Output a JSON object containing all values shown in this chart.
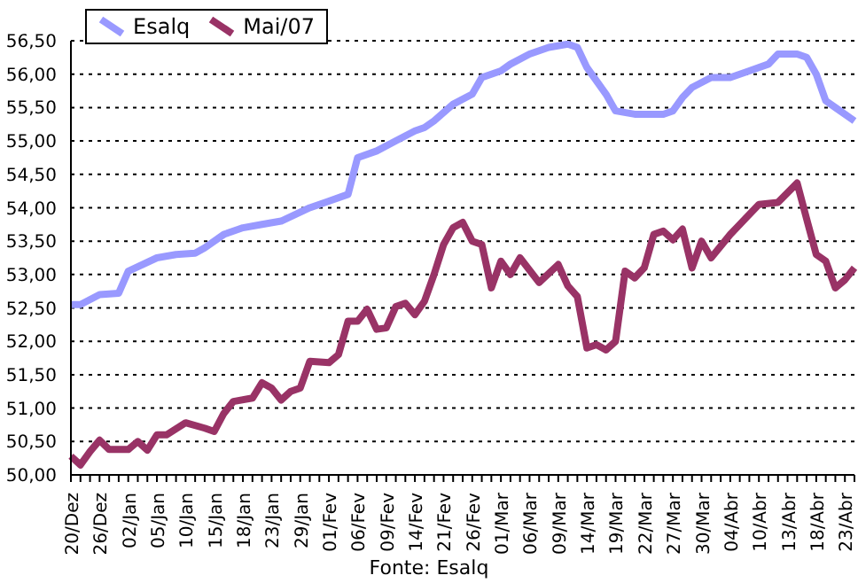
{
  "chart_data": {
    "type": "line",
    "categories": [
      "20/Dez",
      null,
      null,
      "26/Dez",
      null,
      null,
      "02/Jan",
      null,
      null,
      "05/Jan",
      null,
      null,
      "10/Jan",
      null,
      null,
      "15/Jan",
      null,
      null,
      "18/Jan",
      null,
      null,
      "23/Jan",
      null,
      null,
      "29/Jan",
      null,
      null,
      "01/Fev",
      null,
      null,
      "06/Fev",
      null,
      null,
      "09/Fev",
      null,
      null,
      "14/Fev",
      null,
      null,
      "21/Fev",
      null,
      null,
      "26/Fev",
      null,
      null,
      "01/Mar",
      null,
      null,
      "06/Mar",
      null,
      null,
      "09/Mar",
      null,
      null,
      "14/Mar",
      null,
      null,
      "19/Mar",
      null,
      null,
      "22/Mar",
      null,
      null,
      "27/Mar",
      null,
      null,
      "30/Mar",
      null,
      null,
      "04/Abr",
      null,
      null,
      "10/Abr",
      null,
      null,
      "13/Abr",
      null,
      null,
      "18/Abr",
      null,
      null,
      "23/Abr",
      null
    ],
    "series": [
      {
        "name": "Esalq",
        "color": "#9999ff",
        "values": [
          52.55,
          52.55,
          null,
          52.7,
          null,
          52.72,
          53.05,
          null,
          null,
          53.25,
          null,
          53.3,
          null,
          53.32,
          53.4,
          null,
          53.6,
          null,
          53.7,
          null,
          53.75,
          null,
          53.8,
          null,
          null,
          54.0,
          null,
          54.1,
          null,
          54.2,
          54.75,
          null,
          54.85,
          null,
          55.0,
          null,
          55.15,
          55.2,
          55.3,
          null,
          55.55,
          null,
          55.7,
          55.95,
          null,
          56.05,
          56.15,
          null,
          56.3,
          null,
          56.4,
          null,
          56.45,
          56.4,
          56.1,
          null,
          55.7,
          55.45,
          null,
          55.4,
          null,
          null,
          55.4,
          55.45,
          55.65,
          55.8,
          null,
          55.95,
          null,
          55.95,
          null,
          56.05,
          null,
          56.15,
          56.3,
          null,
          56.3,
          56.25,
          56.0,
          55.6,
          55.5,
          null,
          55.3
        ]
      },
      {
        "name": "Mai/07",
        "color": "#993366",
        "values": [
          50.28,
          50.15,
          50.35,
          50.52,
          50.38,
          null,
          50.38,
          50.5,
          50.37,
          50.6,
          50.6,
          null,
          50.78,
          null,
          50.7,
          50.65,
          50.92,
          51.1,
          null,
          51.15,
          51.38,
          51.3,
          51.12,
          51.25,
          51.3,
          51.7,
          null,
          51.68,
          51.8,
          52.3,
          52.3,
          52.48,
          52.18,
          52.2,
          52.52,
          52.57,
          52.4,
          52.6,
          53.0,
          53.45,
          53.7,
          53.78,
          53.5,
          53.45,
          52.8,
          53.2,
          53.0,
          53.25,
          null,
          52.88,
          null,
          53.15,
          52.83,
          52.67,
          51.9,
          51.95,
          51.87,
          52.0,
          53.05,
          52.95,
          53.1,
          53.6,
          53.65,
          53.52,
          53.68,
          53.1,
          53.5,
          53.25,
          null,
          53.6,
          null,
          53.9,
          54.05,
          null,
          54.08,
          null,
          54.37,
          53.83,
          53.3,
          53.2,
          52.8,
          52.92,
          53.1
        ]
      }
    ],
    "ylim": [
      50,
      56.5
    ],
    "yticks": [
      {
        "value": 50,
        "label": "50,00"
      },
      {
        "value": 50.5,
        "label": "50,50"
      },
      {
        "value": 51,
        "label": "51,00"
      },
      {
        "value": 51.5,
        "label": "51,50"
      },
      {
        "value": 52,
        "label": "52,00"
      },
      {
        "value": 52.5,
        "label": "52,50"
      },
      {
        "value": 53,
        "label": "53,00"
      },
      {
        "value": 53.5,
        "label": "53,50"
      },
      {
        "value": 54,
        "label": "54,00"
      },
      {
        "value": 54.5,
        "label": "54,50"
      },
      {
        "value": 55,
        "label": "55,00"
      },
      {
        "value": 55.5,
        "label": "55,50"
      },
      {
        "value": 56,
        "label": "56,00"
      },
      {
        "value": 56.5,
        "label": "56,50"
      }
    ],
    "grid": "y",
    "legend": "top left",
    "marker": "none",
    "line_style": "solid",
    "annotations": [
      "Fonte: Esalq"
    ]
  }
}
